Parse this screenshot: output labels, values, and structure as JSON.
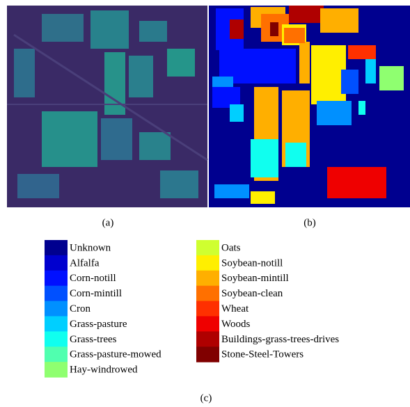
{
  "figure": {
    "panels": [
      {
        "label": "(a)"
      },
      {
        "label": "(b)"
      }
    ],
    "legend": {
      "columns": [
        [
          {
            "name": "Unknown",
            "color": "#00008f"
          },
          {
            "name": "Alfalfa",
            "color": "#0000cf"
          },
          {
            "name": "Corn-notill",
            "color": "#0010ff"
          },
          {
            "name": "Corn-mintill",
            "color": "#0050ff"
          },
          {
            "name": "Cron",
            "color": "#0090ff"
          },
          {
            "name": "Grass-pasture",
            "color": "#00cfff"
          },
          {
            "name": "Grass-trees",
            "color": "#10ffef"
          },
          {
            "name": "Grass-pasture-mowed",
            "color": "#50ffaf"
          },
          {
            "name": "Hay-windrowed",
            "color": "#8fff70"
          }
        ],
        [
          {
            "name": "Oats",
            "color": "#cfff30"
          },
          {
            "name": "Soybean-notill",
            "color": "#ffef00"
          },
          {
            "name": "Soybean-mintill",
            "color": "#ffaf00"
          },
          {
            "name": "Soybean-clean",
            "color": "#ff7000"
          },
          {
            "name": "Wheat",
            "color": "#ff3000"
          },
          {
            "name": "Woods",
            "color": "#ef0000"
          },
          {
            "name": "Buildings-grass-trees-drives",
            "color": "#af0000"
          },
          {
            "name": "Stone-Steel-Towers",
            "color": "#800000"
          }
        ]
      ]
    },
    "caption": "(c)"
  }
}
